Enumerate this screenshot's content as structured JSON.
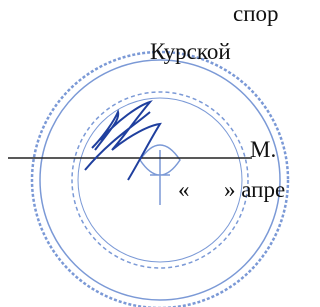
{
  "document": {
    "lines": [
      "спор",
      "Курской",
      "М.",
      "«",
      "» апре"
    ]
  }
}
